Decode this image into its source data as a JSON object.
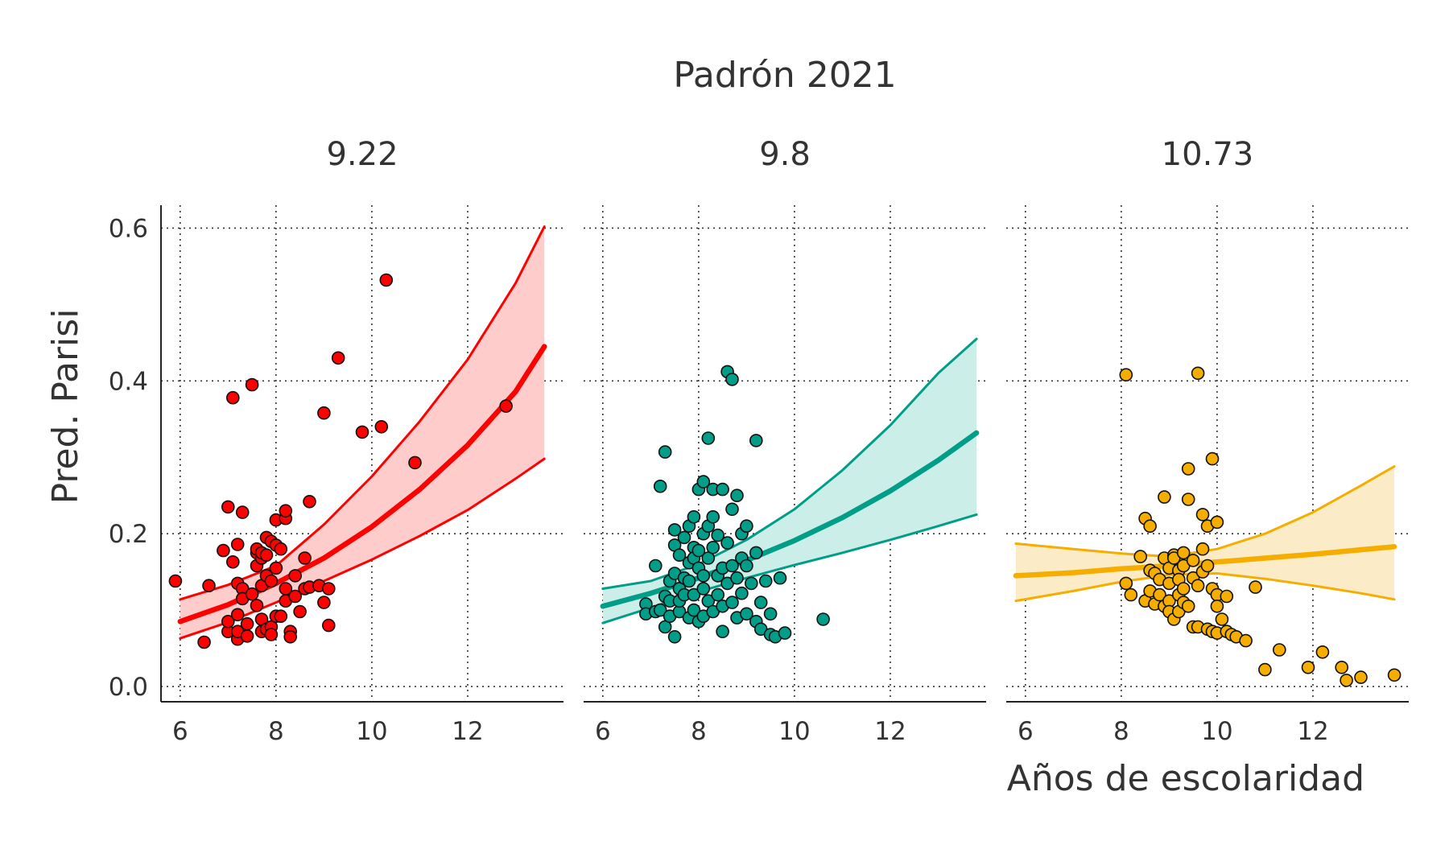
{
  "chart_data": {
    "type": "scatter",
    "title": "Padrón 2021",
    "xlabel": "Años de escolaridad",
    "ylabel": "Pred. Parisi",
    "xlim": [
      5.6,
      14.0
    ],
    "ylim": [
      -0.02,
      0.63
    ],
    "xticks": [
      6,
      8,
      10,
      12
    ],
    "yticks": [
      0.0,
      0.2,
      0.4,
      0.6
    ],
    "xtick_labels": [
      "6",
      "8",
      "10",
      "12"
    ],
    "ytick_labels": [
      "0.0",
      "0.2",
      "0.4",
      "0.6"
    ],
    "grid": true,
    "panels": [
      {
        "label": "9.22",
        "color": "#ff0000",
        "fill": "#ffcccc",
        "fit": {
          "x": [
            6.0,
            7.0,
            8.0,
            9.0,
            10.0,
            11.0,
            12.0,
            13.0,
            13.6
          ],
          "y": [
            0.085,
            0.107,
            0.135,
            0.168,
            0.209,
            0.258,
            0.316,
            0.386,
            0.445
          ],
          "lower": [
            0.063,
            0.084,
            0.11,
            0.138,
            0.166,
            0.197,
            0.231,
            0.272,
            0.298
          ],
          "upper": [
            0.114,
            0.133,
            0.158,
            0.212,
            0.275,
            0.347,
            0.428,
            0.528,
            0.602
          ]
        },
        "points": [
          [
            5.9,
            0.138
          ],
          [
            6.5,
            0.058
          ],
          [
            6.6,
            0.132
          ],
          [
            6.9,
            0.178
          ],
          [
            7.0,
            0.235
          ],
          [
            7.0,
            0.072
          ],
          [
            7.0,
            0.085
          ],
          [
            7.1,
            0.163
          ],
          [
            7.1,
            0.378
          ],
          [
            7.2,
            0.062
          ],
          [
            7.2,
            0.072
          ],
          [
            7.2,
            0.094
          ],
          [
            7.2,
            0.135
          ],
          [
            7.2,
            0.186
          ],
          [
            7.3,
            0.228
          ],
          [
            7.3,
            0.128
          ],
          [
            7.3,
            0.115
          ],
          [
            7.4,
            0.066
          ],
          [
            7.4,
            0.082
          ],
          [
            7.5,
            0.395
          ],
          [
            7.5,
            0.121
          ],
          [
            7.6,
            0.106
          ],
          [
            7.6,
            0.158
          ],
          [
            7.6,
            0.175
          ],
          [
            7.6,
            0.18
          ],
          [
            7.7,
            0.088
          ],
          [
            7.7,
            0.132
          ],
          [
            7.7,
            0.168
          ],
          [
            7.7,
            0.175
          ],
          [
            7.7,
            0.072
          ],
          [
            7.8,
            0.195
          ],
          [
            7.8,
            0.075
          ],
          [
            7.8,
            0.145
          ],
          [
            7.8,
            0.172
          ],
          [
            7.9,
            0.078
          ],
          [
            7.9,
            0.138
          ],
          [
            7.9,
            0.068
          ],
          [
            7.9,
            0.19
          ],
          [
            8.0,
            0.092
          ],
          [
            8.0,
            0.155
          ],
          [
            8.0,
            0.218
          ],
          [
            8.0,
            0.185
          ],
          [
            8.1,
            0.092
          ],
          [
            8.1,
            0.18
          ],
          [
            8.2,
            0.112
          ],
          [
            8.2,
            0.22
          ],
          [
            8.2,
            0.128
          ],
          [
            8.2,
            0.23
          ],
          [
            8.3,
            0.072
          ],
          [
            8.3,
            0.065
          ],
          [
            8.4,
            0.145
          ],
          [
            8.4,
            0.118
          ],
          [
            8.5,
            0.098
          ],
          [
            8.6,
            0.168
          ],
          [
            8.6,
            0.128
          ],
          [
            8.7,
            0.242
          ],
          [
            8.7,
            0.13
          ],
          [
            8.9,
            0.132
          ],
          [
            9.0,
            0.358
          ],
          [
            9.0,
            0.11
          ],
          [
            9.1,
            0.128
          ],
          [
            9.1,
            0.08
          ],
          [
            9.3,
            0.43
          ],
          [
            9.8,
            0.333
          ],
          [
            10.2,
            0.34
          ],
          [
            10.3,
            0.532
          ],
          [
            10.9,
            0.293
          ],
          [
            12.8,
            0.367
          ]
        ]
      },
      {
        "label": "9.8",
        "color": "#009e89",
        "fill": "#cceee8",
        "fit": {
          "x": [
            6.0,
            7.0,
            8.0,
            9.0,
            10.0,
            11.0,
            12.0,
            13.0,
            13.8
          ],
          "y": [
            0.105,
            0.122,
            0.142,
            0.165,
            0.191,
            0.221,
            0.256,
            0.296,
            0.332
          ],
          "lower": [
            0.083,
            0.103,
            0.124,
            0.142,
            0.159,
            0.175,
            0.192,
            0.21,
            0.225
          ],
          "upper": [
            0.128,
            0.138,
            0.16,
            0.192,
            0.232,
            0.283,
            0.342,
            0.41,
            0.455
          ]
        },
        "points": [
          [
            6.9,
            0.108
          ],
          [
            6.9,
            0.095
          ],
          [
            7.1,
            0.098
          ],
          [
            7.1,
            0.158
          ],
          [
            7.2,
            0.262
          ],
          [
            7.2,
            0.1
          ],
          [
            7.3,
            0.307
          ],
          [
            7.3,
            0.078
          ],
          [
            7.3,
            0.118
          ],
          [
            7.4,
            0.138
          ],
          [
            7.4,
            0.112
          ],
          [
            7.4,
            0.092
          ],
          [
            7.5,
            0.148
          ],
          [
            7.5,
            0.205
          ],
          [
            7.5,
            0.185
          ],
          [
            7.5,
            0.065
          ],
          [
            7.6,
            0.128
          ],
          [
            7.6,
            0.172
          ],
          [
            7.6,
            0.098
          ],
          [
            7.6,
            0.112
          ],
          [
            7.7,
            0.195
          ],
          [
            7.7,
            0.142
          ],
          [
            7.7,
            0.12
          ],
          [
            7.8,
            0.162
          ],
          [
            7.8,
            0.138
          ],
          [
            7.8,
            0.21
          ],
          [
            7.8,
            0.09
          ],
          [
            7.9,
            0.222
          ],
          [
            7.9,
            0.182
          ],
          [
            7.9,
            0.168
          ],
          [
            7.9,
            0.12
          ],
          [
            7.9,
            0.1
          ],
          [
            8.0,
            0.155
          ],
          [
            8.0,
            0.258
          ],
          [
            8.0,
            0.178
          ],
          [
            8.0,
            0.085
          ],
          [
            8.1,
            0.268
          ],
          [
            8.1,
            0.2
          ],
          [
            8.1,
            0.145
          ],
          [
            8.1,
            0.128
          ],
          [
            8.1,
            0.092
          ],
          [
            8.2,
            0.325
          ],
          [
            8.2,
            0.21
          ],
          [
            8.2,
            0.168
          ],
          [
            8.2,
            0.112
          ],
          [
            8.3,
            0.258
          ],
          [
            8.3,
            0.222
          ],
          [
            8.3,
            0.182
          ],
          [
            8.3,
            0.098
          ],
          [
            8.4,
            0.198
          ],
          [
            8.4,
            0.145
          ],
          [
            8.4,
            0.12
          ],
          [
            8.5,
            0.258
          ],
          [
            8.5,
            0.155
          ],
          [
            8.5,
            0.105
          ],
          [
            8.5,
            0.072
          ],
          [
            8.6,
            0.412
          ],
          [
            8.6,
            0.188
          ],
          [
            8.6,
            0.135
          ],
          [
            8.7,
            0.402
          ],
          [
            8.7,
            0.232
          ],
          [
            8.7,
            0.158
          ],
          [
            8.7,
            0.11
          ],
          [
            8.8,
            0.25
          ],
          [
            8.8,
            0.142
          ],
          [
            8.8,
            0.09
          ],
          [
            8.9,
            0.2
          ],
          [
            8.9,
            0.168
          ],
          [
            8.9,
            0.122
          ],
          [
            9.0,
            0.21
          ],
          [
            9.0,
            0.158
          ],
          [
            9.0,
            0.095
          ],
          [
            9.1,
            0.135
          ],
          [
            9.2,
            0.175
          ],
          [
            9.2,
            0.085
          ],
          [
            9.2,
            0.322
          ],
          [
            9.3,
            0.075
          ],
          [
            9.3,
            0.11
          ],
          [
            9.4,
            0.138
          ],
          [
            9.5,
            0.068
          ],
          [
            9.5,
            0.095
          ],
          [
            9.6,
            0.065
          ],
          [
            9.7,
            0.142
          ],
          [
            9.8,
            0.07
          ],
          [
            10.6,
            0.088
          ]
        ]
      },
      {
        "label": "10.73",
        "color": "#f5ae00",
        "fill": "#fbebc6",
        "fit": {
          "x": [
            5.8,
            7.0,
            8.0,
            9.0,
            10.0,
            11.0,
            12.0,
            13.0,
            13.7
          ],
          "y": [
            0.145,
            0.149,
            0.154,
            0.158,
            0.163,
            0.168,
            0.173,
            0.179,
            0.183
          ],
          "lower": [
            0.112,
            0.125,
            0.137,
            0.146,
            0.148,
            0.141,
            0.132,
            0.122,
            0.114
          ],
          "upper": [
            0.187,
            0.18,
            0.174,
            0.17,
            0.18,
            0.2,
            0.228,
            0.263,
            0.288
          ]
        },
        "points": [
          [
            8.1,
            0.408
          ],
          [
            8.1,
            0.135
          ],
          [
            8.2,
            0.12
          ],
          [
            8.4,
            0.17
          ],
          [
            8.5,
            0.22
          ],
          [
            8.5,
            0.112
          ],
          [
            8.6,
            0.21
          ],
          [
            8.6,
            0.152
          ],
          [
            8.6,
            0.125
          ],
          [
            8.7,
            0.108
          ],
          [
            8.7,
            0.148
          ],
          [
            8.8,
            0.14
          ],
          [
            8.8,
            0.12
          ],
          [
            8.9,
            0.248
          ],
          [
            8.9,
            0.168
          ],
          [
            8.9,
            0.105
          ],
          [
            9.0,
            0.155
          ],
          [
            9.0,
            0.135
          ],
          [
            9.0,
            0.112
          ],
          [
            9.0,
            0.098
          ],
          [
            9.1,
            0.172
          ],
          [
            9.1,
            0.168
          ],
          [
            9.1,
            0.088
          ],
          [
            9.2,
            0.152
          ],
          [
            9.2,
            0.14
          ],
          [
            9.2,
            0.12
          ],
          [
            9.2,
            0.098
          ],
          [
            9.3,
            0.175
          ],
          [
            9.3,
            0.158
          ],
          [
            9.3,
            0.128
          ],
          [
            9.3,
            0.11
          ],
          [
            9.4,
            0.245
          ],
          [
            9.4,
            0.285
          ],
          [
            9.4,
            0.105
          ],
          [
            9.5,
            0.165
          ],
          [
            9.5,
            0.142
          ],
          [
            9.5,
            0.078
          ],
          [
            9.6,
            0.41
          ],
          [
            9.6,
            0.132
          ],
          [
            9.6,
            0.078
          ],
          [
            9.7,
            0.225
          ],
          [
            9.7,
            0.18
          ],
          [
            9.7,
            0.15
          ],
          [
            9.8,
            0.21
          ],
          [
            9.8,
            0.158
          ],
          [
            9.8,
            0.075
          ],
          [
            9.9,
            0.298
          ],
          [
            9.9,
            0.128
          ],
          [
            9.9,
            0.072
          ],
          [
            10.0,
            0.215
          ],
          [
            10.0,
            0.12
          ],
          [
            10.0,
            0.105
          ],
          [
            10.0,
            0.07
          ],
          [
            10.1,
            0.088
          ],
          [
            10.2,
            0.072
          ],
          [
            10.2,
            0.118
          ],
          [
            10.3,
            0.068
          ],
          [
            10.4,
            0.065
          ],
          [
            10.6,
            0.06
          ],
          [
            10.8,
            0.13
          ],
          [
            11.0,
            0.022
          ],
          [
            11.3,
            0.048
          ],
          [
            11.9,
            0.025
          ],
          [
            12.2,
            0.045
          ],
          [
            12.6,
            0.025
          ],
          [
            12.7,
            0.008
          ],
          [
            13.0,
            0.012
          ],
          [
            13.7,
            0.015
          ]
        ]
      }
    ]
  }
}
